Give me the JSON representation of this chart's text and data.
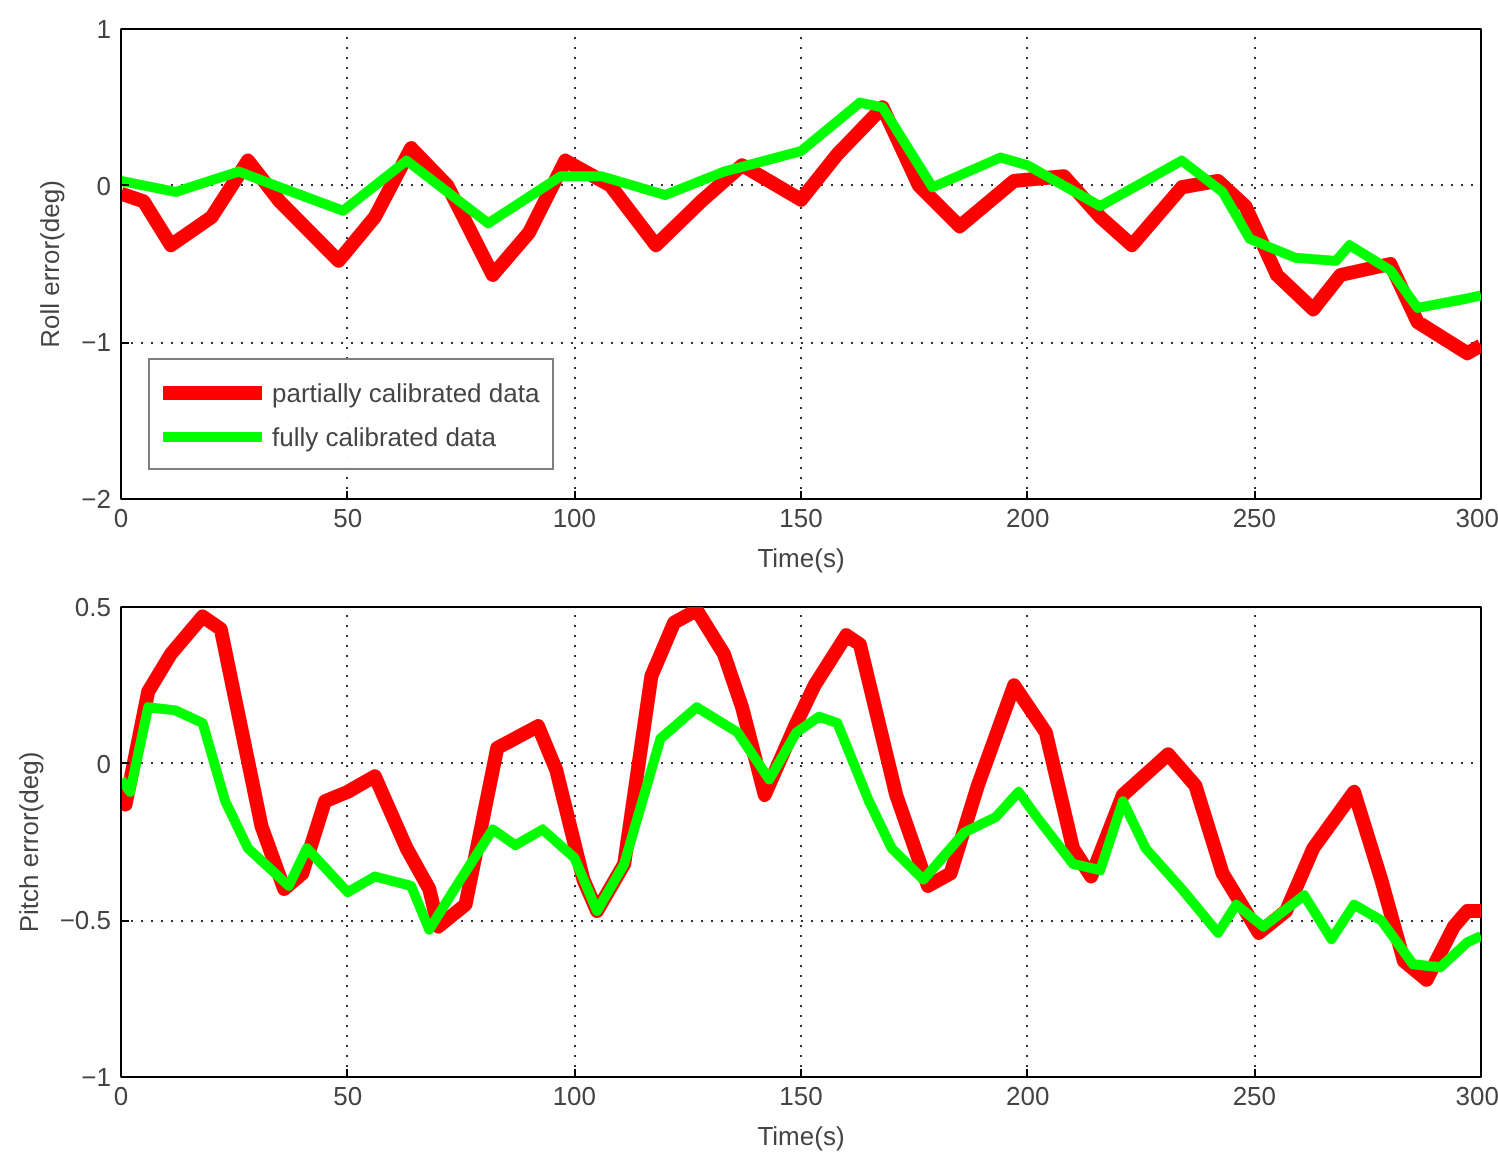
{
  "chart_data": [
    {
      "type": "line",
      "xlabel": "Time(s)",
      "ylabel": "Roll error(deg)",
      "xlim": [
        0,
        300
      ],
      "ylim": [
        -2,
        1
      ],
      "xticks": [
        0,
        50,
        100,
        150,
        200,
        250,
        300
      ],
      "yticks": [
        -2,
        -1,
        0,
        1
      ],
      "grid": true,
      "legend": "bottom left",
      "line_style": "solid",
      "series": [
        {
          "name": "partially calibrated data",
          "color": "#ff0000",
          "x": [
            0,
            5,
            11,
            20,
            28,
            35,
            48,
            56,
            64,
            72,
            82,
            90,
            98,
            108,
            118,
            128,
            137,
            150,
            158,
            168,
            176,
            185,
            197,
            208,
            216,
            223,
            234,
            242,
            248,
            255,
            263,
            269,
            280,
            286,
            297,
            300
          ],
          "values": [
            -0.05,
            -0.1,
            -0.38,
            -0.2,
            0.16,
            -0.1,
            -0.48,
            -0.2,
            0.24,
            0.0,
            -0.57,
            -0.3,
            0.16,
            0.0,
            -0.38,
            -0.1,
            0.13,
            -0.09,
            0.2,
            0.5,
            0.0,
            -0.26,
            0.03,
            0.06,
            -0.2,
            -0.38,
            -0.01,
            0.03,
            -0.13,
            -0.57,
            -0.79,
            -0.57,
            -0.5,
            -0.87,
            -1.07,
            -1.02
          ]
        },
        {
          "name": "fully calibrated data",
          "color": "#00ff00",
          "x": [
            0,
            12,
            26,
            35,
            49,
            63,
            81,
            97,
            106,
            120,
            133,
            150,
            163,
            168,
            179,
            194,
            200,
            216,
            234,
            243,
            249,
            259,
            268,
            271,
            280,
            286,
            297,
            300
          ],
          "values": [
            0.03,
            -0.04,
            0.09,
            -0.01,
            -0.16,
            0.16,
            -0.24,
            0.06,
            0.06,
            -0.06,
            0.09,
            0.22,
            0.53,
            0.5,
            -0.01,
            0.18,
            0.13,
            -0.13,
            0.16,
            -0.04,
            -0.34,
            -0.46,
            -0.48,
            -0.38,
            -0.54,
            -0.78,
            -0.72,
            -0.7
          ]
        }
      ]
    },
    {
      "type": "line",
      "xlabel": "Time(s)",
      "ylabel": "Pitch error(deg)",
      "xlim": [
        0,
        300
      ],
      "ylim": [
        -1,
        0.5
      ],
      "xticks": [
        0,
        50,
        100,
        150,
        200,
        250,
        300
      ],
      "yticks": [
        -1,
        -0.5,
        0,
        0.5
      ],
      "grid": true,
      "line_style": "solid",
      "series": [
        {
          "color": "#ff0000",
          "x": [
            0,
            1,
            6,
            11,
            18,
            22,
            27,
            31,
            36,
            40,
            45,
            50,
            56,
            63,
            68,
            70,
            76,
            83,
            92,
            96,
            102,
            105,
            111,
            117,
            122,
            127,
            133,
            137,
            142,
            149,
            153,
            160,
            163,
            171,
            178,
            183,
            189,
            197,
            204,
            210,
            214,
            221,
            231,
            237,
            243,
            251,
            257,
            263,
            272,
            278,
            283,
            288,
            294,
            297,
            300
          ],
          "values": [
            -0.05,
            -0.13,
            0.23,
            0.35,
            0.47,
            0.43,
            0.08,
            -0.2,
            -0.4,
            -0.35,
            -0.12,
            -0.09,
            -0.04,
            -0.27,
            -0.4,
            -0.52,
            -0.45,
            0.05,
            0.12,
            -0.02,
            -0.37,
            -0.47,
            -0.32,
            0.28,
            0.45,
            0.49,
            0.35,
            0.18,
            -0.1,
            0.13,
            0.25,
            0.41,
            0.38,
            -0.1,
            -0.39,
            -0.35,
            -0.07,
            0.25,
            0.1,
            -0.27,
            -0.36,
            -0.1,
            0.03,
            -0.07,
            -0.35,
            -0.54,
            -0.47,
            -0.27,
            -0.09,
            -0.37,
            -0.63,
            -0.69,
            -0.52,
            -0.47,
            -0.47
          ]
        },
        {
          "color": "#00ff00",
          "x": [
            0,
            2,
            6,
            12,
            18,
            23,
            28,
            37,
            41,
            50,
            56,
            64,
            68,
            74,
            82,
            87,
            93,
            100,
            105,
            111,
            119,
            127,
            136,
            143,
            149,
            154,
            158,
            165,
            170,
            177,
            186,
            193,
            198,
            202,
            210,
            216,
            221,
            226,
            234,
            242,
            246,
            252,
            261,
            267,
            272,
            278,
            285,
            291,
            297,
            300
          ],
          "values": [
            -0.05,
            -0.09,
            0.18,
            0.17,
            0.13,
            -0.12,
            -0.27,
            -0.39,
            -0.27,
            -0.41,
            -0.36,
            -0.39,
            -0.53,
            -0.39,
            -0.21,
            -0.26,
            -0.21,
            -0.3,
            -0.47,
            -0.32,
            0.08,
            0.18,
            0.1,
            -0.05,
            0.1,
            0.15,
            0.13,
            -0.12,
            -0.27,
            -0.37,
            -0.22,
            -0.17,
            -0.09,
            -0.17,
            -0.32,
            -0.34,
            -0.12,
            -0.27,
            -0.4,
            -0.54,
            -0.45,
            -0.52,
            -0.42,
            -0.56,
            -0.45,
            -0.5,
            -0.64,
            -0.65,
            -0.57,
            -0.55
          ]
        }
      ]
    }
  ]
}
